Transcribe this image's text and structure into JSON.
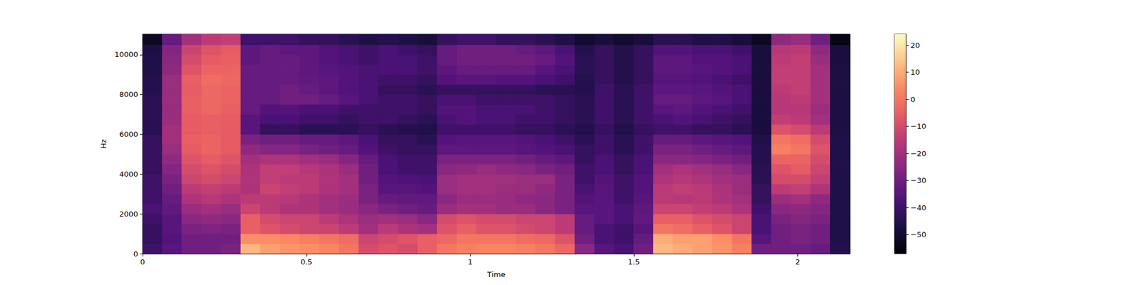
{
  "chart_data": {
    "type": "heatmap",
    "xlabel": "Time",
    "ylabel": "Hz",
    "color": "magma",
    "grid": false,
    "xlim": [
      0,
      2.16
    ],
    "ylim": [
      0,
      11025
    ],
    "xticks": [
      0,
      0.5,
      1,
      1.5,
      2
    ],
    "yticks": [
      0,
      2000,
      4000,
      6000,
      8000,
      10000
    ],
    "x_edges": [
      0,
      0.06,
      0.12,
      0.18,
      0.24,
      0.3,
      0.36,
      0.42,
      0.48,
      0.54,
      0.6,
      0.66,
      0.72,
      0.78,
      0.84,
      0.9,
      0.96,
      1.02,
      1.08,
      1.14,
      1.2,
      1.26,
      1.32,
      1.38,
      1.44,
      1.5,
      1.56,
      1.62,
      1.68,
      1.74,
      1.8,
      1.86,
      1.92,
      1.98,
      2.04,
      2.1,
      2.16
    ],
    "y_edges": [
      0,
      500,
      1000,
      1500,
      2000,
      2500,
      3000,
      3500,
      4000,
      4500,
      5000,
      5500,
      6000,
      6500,
      7000,
      7500,
      8000,
      8500,
      9000,
      9500,
      10000,
      10500,
      11025
    ],
    "values": [
      [
        -40,
        -35,
        -30,
        -30,
        -28,
        12,
        8,
        6,
        5,
        3,
        0,
        -10,
        -8,
        -10,
        -5,
        0,
        2,
        3,
        3,
        2,
        0,
        -3,
        -25,
        -35,
        -38,
        -30,
        12,
        10,
        8,
        6,
        2,
        -30,
        -30,
        -30,
        -32,
        -45
      ],
      [
        -42,
        -36,
        -30,
        -30,
        -30,
        5,
        5,
        4,
        2,
        0,
        -2,
        -12,
        -10,
        -8,
        -5,
        -3,
        0,
        0,
        0,
        -2,
        -3,
        -8,
        -30,
        -38,
        -40,
        -32,
        10,
        8,
        8,
        5,
        0,
        -35,
        -30,
        -28,
        -30,
        -46
      ],
      [
        -42,
        -35,
        -28,
        -27,
        -28,
        -5,
        -8,
        -10,
        -12,
        -12,
        -15,
        -20,
        -15,
        -18,
        -20,
        -8,
        -5,
        -8,
        -8,
        -10,
        -12,
        -15,
        -32,
        -38,
        -40,
        -35,
        0,
        -2,
        -5,
        -8,
        -12,
        -38,
        -30,
        -28,
        -30,
        -46
      ],
      [
        -40,
        -35,
        -25,
        -24,
        -25,
        -5,
        -10,
        -12,
        -12,
        -15,
        -18,
        -22,
        -20,
        -22,
        -25,
        -10,
        -8,
        -10,
        -10,
        -12,
        -12,
        -15,
        -32,
        -35,
        -38,
        -33,
        -5,
        -5,
        -8,
        -10,
        -12,
        -38,
        -28,
        -26,
        -28,
        -46
      ],
      [
        -38,
        -33,
        -22,
        -20,
        -22,
        -12,
        -15,
        -18,
        -18,
        -20,
        -22,
        -25,
        -28,
        -30,
        -32,
        -22,
        -20,
        -20,
        -22,
        -22,
        -25,
        -28,
        -35,
        -35,
        -38,
        -34,
        -12,
        -12,
        -14,
        -15,
        -18,
        -40,
        -25,
        -24,
        -26,
        -46
      ],
      [
        -40,
        -32,
        -18,
        -16,
        -18,
        -15,
        -15,
        -16,
        -18,
        -20,
        -22,
        -28,
        -32,
        -33,
        -33,
        -25,
        -22,
        -22,
        -22,
        -24,
        -25,
        -28,
        -36,
        -35,
        -40,
        -35,
        -15,
        -16,
        -15,
        -18,
        -20,
        -42,
        -22,
        -20,
        -24,
        -46
      ],
      [
        -40,
        -30,
        -15,
        -14,
        -15,
        -18,
        -12,
        -14,
        -15,
        -18,
        -20,
        -28,
        -35,
        -35,
        -36,
        -22,
        -20,
        -20,
        -22,
        -22,
        -24,
        -28,
        -38,
        -35,
        -40,
        -36,
        -15,
        -14,
        -15,
        -18,
        -22,
        -42,
        -15,
        -14,
        -18,
        -46
      ],
      [
        -40,
        -28,
        -12,
        -10,
        -12,
        -18,
        -14,
        -15,
        -15,
        -18,
        -20,
        -30,
        -36,
        -37,
        -38,
        -22,
        -20,
        -20,
        -20,
        -22,
        -22,
        -28,
        -40,
        -36,
        -40,
        -36,
        -18,
        -16,
        -18,
        -20,
        -22,
        -44,
        -10,
        -10,
        -14,
        -46
      ],
      [
        -42,
        -26,
        -10,
        -8,
        -10,
        -18,
        -14,
        -14,
        -16,
        -18,
        -22,
        -30,
        -38,
        -40,
        -40,
        -25,
        -24,
        -22,
        -24,
        -25,
        -28,
        -30,
        -40,
        -38,
        -42,
        -38,
        -20,
        -18,
        -20,
        -22,
        -25,
        -44,
        -8,
        -6,
        -12,
        -46
      ],
      [
        -42,
        -24,
        -8,
        -6,
        -8,
        -20,
        -18,
        -18,
        -20,
        -22,
        -26,
        -32,
        -38,
        -40,
        -40,
        -28,
        -28,
        -28,
        -28,
        -30,
        -32,
        -34,
        -42,
        -38,
        -42,
        -38,
        -25,
        -25,
        -26,
        -28,
        -30,
        -45,
        -4,
        -4,
        -10,
        -46
      ],
      [
        -42,
        -22,
        -6,
        -4,
        -6,
        -24,
        -26,
        -26,
        -28,
        -30,
        -32,
        -36,
        -40,
        -42,
        -42,
        -34,
        -34,
        -34,
        -34,
        -35,
        -36,
        -38,
        -42,
        -40,
        -44,
        -40,
        -28,
        -28,
        -30,
        -32,
        -34,
        -45,
        2,
        0,
        -8,
        -46
      ],
      [
        -42,
        -20,
        -5,
        -4,
        -6,
        -28,
        -30,
        -30,
        -32,
        -32,
        -34,
        -38,
        -42,
        -42,
        -44,
        -36,
        -35,
        -35,
        -35,
        -36,
        -38,
        -40,
        -44,
        -40,
        -44,
        -40,
        -32,
        -32,
        -34,
        -35,
        -36,
        -46,
        0,
        -2,
        -10,
        -46
      ],
      [
        -44,
        -20,
        -6,
        -5,
        -6,
        -35,
        -42,
        -42,
        -44,
        -44,
        -44,
        -42,
        -44,
        -45,
        -46,
        -40,
        -40,
        -40,
        -40,
        -42,
        -42,
        -44,
        -45,
        -42,
        -45,
        -42,
        -40,
        -40,
        -42,
        -42,
        -44,
        -48,
        -8,
        -10,
        -15,
        -47
      ],
      [
        -44,
        -22,
        -6,
        -5,
        -6,
        -35,
        -38,
        -38,
        -40,
        -40,
        -42,
        -40,
        -40,
        -42,
        -44,
        -38,
        -36,
        -38,
        -38,
        -40,
        -40,
        -42,
        -44,
        -40,
        -44,
        -40,
        -38,
        -36,
        -38,
        -40,
        -42,
        -48,
        -14,
        -15,
        -20,
        -47
      ],
      [
        -44,
        -22,
        -5,
        -3,
        -5,
        -32,
        -36,
        -36,
        -38,
        -38,
        -40,
        -40,
        -40,
        -40,
        -42,
        -36,
        -36,
        -38,
        -38,
        -38,
        -40,
        -42,
        -44,
        -40,
        -44,
        -40,
        -35,
        -34,
        -36,
        -38,
        -40,
        -48,
        -16,
        -16,
        -22,
        -47
      ],
      [
        -44,
        -22,
        -5,
        -3,
        -4,
        -32,
        -32,
        -30,
        -30,
        -32,
        -35,
        -38,
        -40,
        -40,
        -42,
        -38,
        -38,
        -40,
        -40,
        -40,
        -40,
        -42,
        -44,
        -40,
        -44,
        -40,
        -32,
        -32,
        -34,
        -35,
        -38,
        -48,
        -16,
        -15,
        -20,
        -47
      ],
      [
        -45,
        -22,
        -6,
        -3,
        -4,
        -32,
        -32,
        -30,
        -32,
        -34,
        -36,
        -38,
        -42,
        -42,
        -44,
        -42,
        -42,
        -42,
        -42,
        -42,
        -44,
        -44,
        -45,
        -40,
        -44,
        -40,
        -34,
        -34,
        -35,
        -36,
        -38,
        -48,
        -15,
        -14,
        -20,
        -47
      ],
      [
        -45,
        -22,
        -5,
        -2,
        -3,
        -32,
        -32,
        -32,
        -33,
        -34,
        -36,
        -38,
        -40,
        -40,
        -42,
        -36,
        -35,
        -35,
        -36,
        -36,
        -38,
        -40,
        -45,
        -42,
        -45,
        -42,
        -35,
        -35,
        -36,
        -38,
        -40,
        -48,
        -14,
        -14,
        -20,
        -47
      ],
      [
        -46,
        -24,
        -8,
        -4,
        -4,
        -32,
        -32,
        -32,
        -34,
        -35,
        -36,
        -38,
        -38,
        -38,
        -40,
        -34,
        -32,
        -32,
        -32,
        -32,
        -35,
        -38,
        -44,
        -42,
        -45,
        -42,
        -34,
        -34,
        -35,
        -36,
        -38,
        -48,
        -14,
        -14,
        -20,
        -47
      ],
      [
        -46,
        -25,
        -10,
        -6,
        -5,
        -34,
        -32,
        -32,
        -34,
        -36,
        -38,
        -40,
        -38,
        -38,
        -40,
        -32,
        -30,
        -30,
        -30,
        -30,
        -32,
        -36,
        -44,
        -42,
        -45,
        -42,
        -34,
        -34,
        -36,
        -36,
        -38,
        -48,
        -15,
        -14,
        -22,
        -48
      ],
      [
        -47,
        -26,
        -12,
        -8,
        -6,
        -34,
        -32,
        -34,
        -34,
        -36,
        -38,
        -40,
        -38,
        -40,
        -42,
        -32,
        -30,
        -30,
        -30,
        -32,
        -34,
        -38,
        -45,
        -42,
        -45,
        -42,
        -36,
        -36,
        -38,
        -38,
        -40,
        -48,
        -16,
        -15,
        -24,
        -48
      ],
      [
        -52,
        -32,
        -20,
        -15,
        -14,
        -40,
        -40,
        -40,
        -42,
        -42,
        -44,
        -46,
        -45,
        -46,
        -48,
        -42,
        -40,
        -40,
        -42,
        -42,
        -44,
        -46,
        -50,
        -48,
        -50,
        -48,
        -44,
        -44,
        -46,
        -46,
        -48,
        -52,
        -24,
        -22,
        -30,
        -54
      ]
    ],
    "colorbar": {
      "range": [
        -57,
        24
      ],
      "ticks": [
        {
          "value": -50,
          "label": "−50"
        },
        {
          "value": -40,
          "label": "−40"
        },
        {
          "value": -30,
          "label": "−30"
        },
        {
          "value": -20,
          "label": "−20"
        },
        {
          "value": -10,
          "label": "−10"
        },
        0,
        10,
        20
      ]
    }
  }
}
